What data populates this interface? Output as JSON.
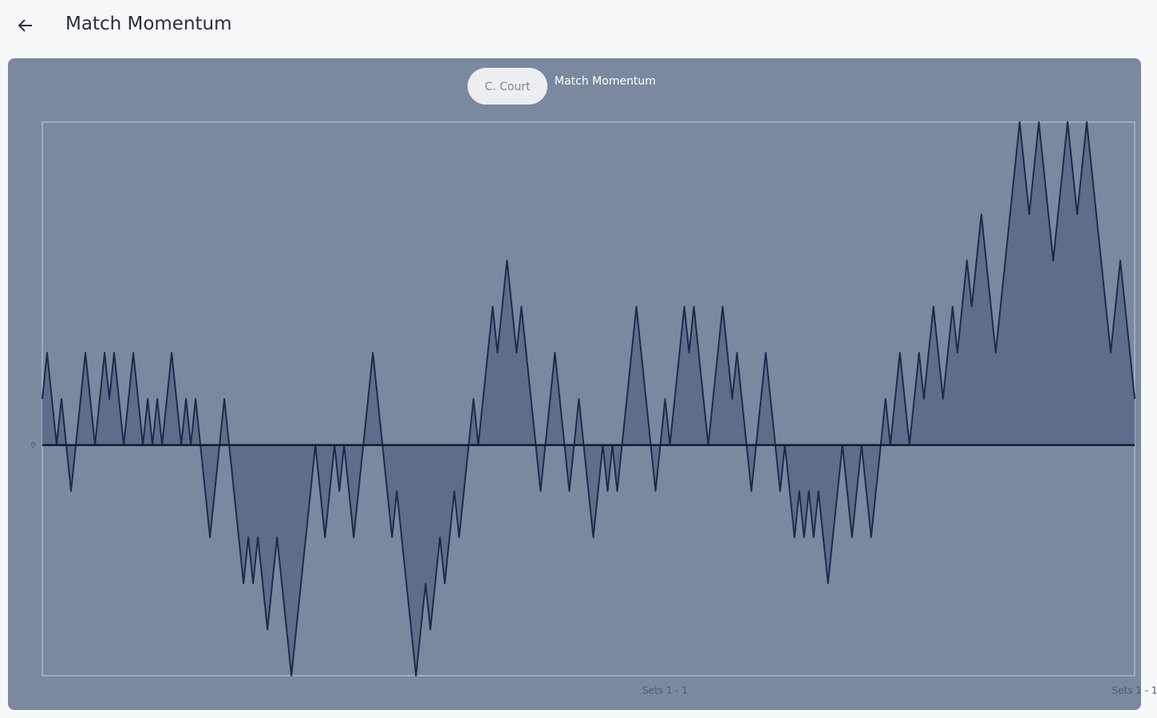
{
  "header": {
    "title": "Match Momentum"
  },
  "chart_data": {
    "type": "area-line",
    "title": "Match Momentum",
    "series": [
      {
        "name": "C. Court",
        "color": "#1c2b4b",
        "fill": "#5e6d89",
        "values": [
          1,
          2,
          1,
          0,
          1,
          0,
          -1,
          0,
          1,
          2,
          1,
          0,
          1,
          2,
          1,
          2,
          1,
          0,
          1,
          2,
          1,
          0,
          1,
          0,
          1,
          0,
          1,
          2,
          1,
          0,
          1,
          0,
          1,
          0,
          -1,
          -2,
          -1,
          0,
          1,
          0,
          -1,
          -2,
          -3,
          -2,
          -3,
          -2,
          -3,
          -4,
          -3,
          -2,
          -3,
          -4,
          -5,
          -4,
          -3,
          -2,
          -1,
          0,
          -1,
          -2,
          -1,
          0,
          -1,
          0,
          -1,
          -2,
          -1,
          0,
          1,
          2,
          1,
          0,
          -1,
          -2,
          -1,
          -2,
          -3,
          -4,
          -5,
          -4,
          -3,
          -4,
          -3,
          -2,
          -3,
          -2,
          -1,
          -2,
          -1,
          0,
          1,
          0,
          1,
          2,
          3,
          2,
          3,
          4,
          3,
          2,
          3,
          2,
          1,
          0,
          -1,
          0,
          1,
          2,
          1,
          0,
          -1,
          0,
          1,
          0,
          -1,
          -2,
          -1,
          0,
          -1,
          0,
          -1,
          0,
          1,
          2,
          3,
          2,
          1,
          0,
          -1,
          0,
          1,
          0,
          1,
          2,
          3,
          2,
          3,
          2,
          1,
          0,
          1,
          2,
          3,
          2,
          1,
          2,
          1,
          0,
          -1,
          0,
          1,
          2,
          1,
          0,
          -1,
          0,
          -1,
          -2,
          -1,
          -2,
          -1,
          -2,
          -1,
          -2,
          -3,
          -2,
          -1,
          0,
          -1,
          -2,
          -1,
          0,
          -1,
          -2,
          -1,
          0,
          1,
          0,
          1,
          2,
          1,
          0,
          1,
          2,
          1,
          2,
          3,
          2,
          1,
          2,
          3,
          2,
          3,
          4,
          3,
          4,
          5,
          4,
          3,
          2,
          3,
          4,
          5,
          6,
          7,
          6,
          5,
          6,
          7,
          6,
          5,
          4,
          5,
          6,
          7,
          6,
          5,
          6,
          7,
          6,
          5,
          4,
          3,
          2,
          3,
          4,
          3,
          2,
          1
        ]
      }
    ],
    "xlim": [
      0,
      228
    ],
    "xticks": [
      {
        "value": 130,
        "label": "Sets 1 - 1"
      },
      {
        "value": 228,
        "label": "Sets 1 - 1"
      }
    ],
    "ylim": [
      -5,
      7
    ],
    "yticks": [
      0
    ]
  }
}
